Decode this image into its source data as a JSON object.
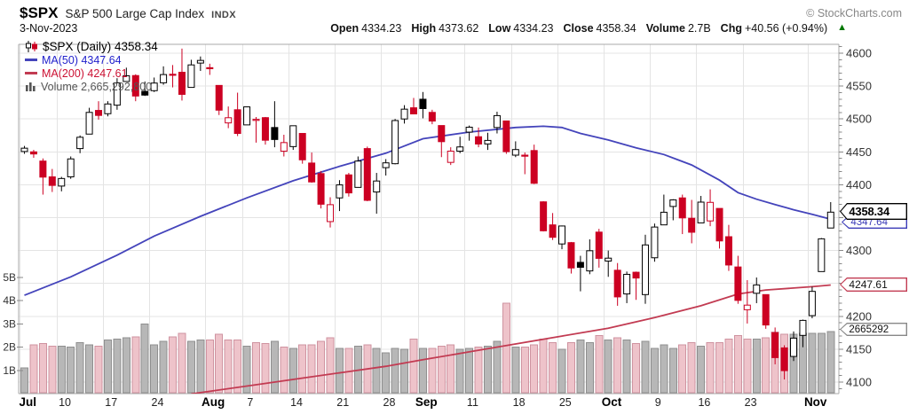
{
  "header": {
    "symbol": "$SPX",
    "name": "S&P 500 Large Cap Index",
    "exchange": "INDX",
    "copyright": "© StockCharts.com",
    "date": "3-Nov-2023",
    "quote": [
      {
        "label": "Open",
        "value": "4334.23"
      },
      {
        "label": "High",
        "value": "4373.62"
      },
      {
        "label": "Low",
        "value": "4334.23"
      },
      {
        "label": "Close",
        "value": "4358.34"
      },
      {
        "label": "Volume",
        "value": "2.7B"
      },
      {
        "label": "Chg",
        "value": "+40.56 (+0.94%)"
      }
    ],
    "quote_arrow": "▲"
  },
  "legend": {
    "main": "$SPX (Daily) 4358.34",
    "ma50": "MA(50) 4347.64",
    "ma200": "MA(200) 4247.61",
    "volume": "Volume 2,665,292,800"
  },
  "callouts": {
    "price": "4358.34",
    "ma50": "4347.64",
    "ma200": "4247.61",
    "volume": "2665292"
  },
  "chart_data": {
    "type": "candlestick",
    "title": "$SPX Daily with MA(50), MA(200) and volume",
    "y_axis": {
      "ticks": [
        4100,
        4150,
        4200,
        4250,
        4300,
        4350,
        4400,
        4450,
        4500,
        4550,
        4600
      ],
      "range": [
        4082,
        4613
      ]
    },
    "volume_axis": {
      "ticks": [
        {
          "label": "1B",
          "v": 1
        },
        {
          "label": "2B",
          "v": 2
        },
        {
          "label": "3B",
          "v": 3
        },
        {
          "label": "4B",
          "v": 4
        },
        {
          "label": "5B",
          "v": 5
        }
      ]
    },
    "x_axis": {
      "labels": [
        {
          "t": "Jul",
          "i": 0,
          "b": 1
        },
        {
          "t": "10",
          "i": 4
        },
        {
          "t": "17",
          "i": 9
        },
        {
          "t": "24",
          "i": 14
        },
        {
          "t": "Aug",
          "i": 20,
          "b": 1
        },
        {
          "t": "7",
          "i": 24
        },
        {
          "t": "14",
          "i": 29
        },
        {
          "t": "21",
          "i": 34
        },
        {
          "t": "28",
          "i": 39
        },
        {
          "t": "Sep",
          "i": 43,
          "b": 1
        },
        {
          "t": "11",
          "i": 48
        },
        {
          "t": "18",
          "i": 53
        },
        {
          "t": "25",
          "i": 58
        },
        {
          "t": "Oct",
          "i": 63,
          "b": 1
        },
        {
          "t": "9",
          "i": 68
        },
        {
          "t": "16",
          "i": 73
        },
        {
          "t": "23",
          "i": 78
        },
        {
          "t": "Nov",
          "i": 85,
          "b": 1
        }
      ]
    },
    "prev_close": 4450.38,
    "candles": [
      [
        "Jul 3",
        4450.5,
        4459,
        4447,
        4455.6,
        1.1
      ],
      [
        "Jul 5",
        4450,
        4453,
        4441,
        4446.8,
        2.1
      ],
      [
        "Jul 6",
        4436,
        4440,
        4385,
        4411.6,
        2.15
      ],
      [
        "Jul 7",
        4412,
        4424,
        4389,
        4399.0,
        2.05
      ],
      [
        "Jul 10",
        4398,
        4412,
        4390,
        4409.5,
        2.05
      ],
      [
        "Jul 11",
        4412,
        4443,
        4409,
        4439.3,
        2.0
      ],
      [
        "Jul 12",
        4455,
        4475,
        4448,
        4472.2,
        2.2
      ],
      [
        "Jul 13",
        4477,
        4517,
        4477,
        4510.0,
        2.1
      ],
      [
        "Jul 14",
        4513,
        4527,
        4499,
        4505.4,
        2.05
      ],
      [
        "Jul 17",
        4508,
        4527,
        4504,
        4522.8,
        2.3
      ],
      [
        "Jul 18",
        4521,
        4562,
        4514,
        4555.0,
        2.35
      ],
      [
        "Jul 19",
        4557,
        4578,
        4557,
        4565.7,
        2.4
      ],
      [
        "Jul 20",
        4566,
        4568,
        4527,
        4534.9,
        2.45
      ],
      [
        "Jul 21",
        4542,
        4557,
        4535,
        4536.3,
        3.0
      ],
      [
        "Jul 24",
        4543,
        4563,
        4541,
        4554.6,
        2.1
      ],
      [
        "Jul 25",
        4555,
        4580,
        4552,
        4567.5,
        2.25
      ],
      [
        "Jul 26",
        4568,
        4582,
        4548,
        4566.8,
        2.45
      ],
      [
        "Jul 27",
        4571,
        4607,
        4528,
        4537.4,
        2.6
      ],
      [
        "Jul 28",
        4548,
        4590,
        4548,
        4582.2,
        2.25
      ],
      [
        "Jul 31",
        4585,
        4595,
        4573,
        4589.0,
        2.3
      ],
      [
        "Aug 1",
        4578,
        4584,
        4567,
        4576.7,
        2.3
      ],
      [
        "Aug 2",
        4551,
        4551,
        4506,
        4513.4,
        2.55
      ],
      [
        "Aug 3",
        4494,
        4519,
        4486,
        4501.9,
        2.3
      ],
      [
        "Aug 4",
        4514,
        4540,
        4474,
        4478.0,
        2.3
      ],
      [
        "Aug 7",
        4491,
        4519,
        4491,
        4518.4,
        2.05
      ],
      [
        "Aug 8",
        4499,
        4503,
        4464,
        4499.4,
        2.2
      ],
      [
        "Aug 9",
        4502,
        4503,
        4461,
        4467.7,
        2.15
      ],
      [
        "Aug 10",
        4487,
        4527,
        4457,
        4468.8,
        2.25
      ],
      [
        "Aug 11",
        4451,
        4476,
        4443,
        4464.1,
        2.0
      ],
      [
        "Aug 14",
        4458,
        4490,
        4453,
        4489.7,
        1.95
      ],
      [
        "Aug 15",
        4478,
        4478,
        4432,
        4437.9,
        2.1
      ],
      [
        "Aug 16",
        4433,
        4449,
        4403,
        4404.3,
        2.1
      ],
      [
        "Aug 17",
        4417,
        4421,
        4364,
        4370.4,
        2.25
      ],
      [
        "Aug 18",
        4344,
        4381,
        4335,
        4369.7,
        2.4
      ],
      [
        "Aug 21",
        4380,
        4407,
        4360,
        4399.8,
        1.95
      ],
      [
        "Aug 22",
        4415,
        4418,
        4382,
        4387.6,
        1.95
      ],
      [
        "Aug 23",
        4396,
        4443,
        4396,
        4436.0,
        2.05
      ],
      [
        "Aug 24",
        4455,
        4458,
        4375,
        4376.3,
        2.1
      ],
      [
        "Aug 25",
        4389,
        4418,
        4356,
        4405.7,
        1.95
      ],
      [
        "Aug 28",
        4426,
        4439,
        4414,
        4433.3,
        1.75
      ],
      [
        "Aug 29",
        4432,
        4500,
        4431,
        4497.6,
        1.95
      ],
      [
        "Aug 30",
        4500,
        4521,
        4493,
        4514.9,
        1.9
      ],
      [
        "Aug 31",
        4517,
        4532,
        4507,
        4507.7,
        2.35
      ],
      [
        "Sep 1",
        4530,
        4541,
        4501,
        4515.8,
        1.95
      ],
      [
        "Sep 5",
        4510,
        4514,
        4492,
        4496.8,
        1.95
      ],
      [
        "Sep 6",
        4490,
        4490,
        4442,
        4465.5,
        2.05
      ],
      [
        "Sep 7",
        4434,
        4457,
        4430,
        4451.1,
        2.1
      ],
      [
        "Sep 8",
        4451,
        4473,
        4448,
        4457.5,
        1.9
      ],
      [
        "Sep 11",
        4480,
        4490,
        4467,
        4487.5,
        1.95
      ],
      [
        "Sep 12",
        4473,
        4487,
        4457,
        4461.9,
        2.0
      ],
      [
        "Sep 13",
        4462,
        4479,
        4453,
        4467.4,
        2.05
      ],
      [
        "Sep 14",
        4487,
        4511,
        4478,
        4505.1,
        2.25
      ],
      [
        "Sep 15",
        4497,
        4497,
        4447,
        4450.3,
        3.9
      ],
      [
        "Sep 18",
        4445,
        4466,
        4442,
        4453.5,
        2.0
      ],
      [
        "Sep 19",
        4445,
        4449,
        4416,
        4444.0,
        2.0
      ],
      [
        "Sep 20",
        4452,
        4461,
        4401,
        4402.2,
        2.1
      ],
      [
        "Sep 21",
        4374,
        4375,
        4329,
        4330.0,
        2.35
      ],
      [
        "Sep 22",
        4339,
        4357,
        4316,
        4320.1,
        2.2
      ],
      [
        "Sep 25",
        4310,
        4338,
        4302,
        4337.3,
        1.9
      ],
      [
        "Sep 26",
        4312,
        4313,
        4265,
        4273.5,
        2.2
      ],
      [
        "Sep 27",
        4282,
        4292,
        4238,
        4274.5,
        2.3
      ],
      [
        "Sep 28",
        4269,
        4317,
        4264,
        4299.7,
        2.2
      ],
      [
        "Sep 29",
        4328,
        4333,
        4274,
        4288.1,
        2.5
      ],
      [
        "Oct 2",
        4284,
        4300,
        4260,
        4288.4,
        2.3
      ],
      [
        "Oct 3",
        4270,
        4281,
        4216,
        4229.5,
        2.4
      ],
      [
        "Oct 4",
        4234,
        4268,
        4220,
        4263.8,
        2.3
      ],
      [
        "Oct 5",
        4267,
        4268,
        4225,
        4258.2,
        2.15
      ],
      [
        "Oct 6",
        4233,
        4324,
        4219,
        4308.5,
        2.25
      ],
      [
        "Oct 9",
        4289,
        4341,
        4283,
        4335.7,
        1.95
      ],
      [
        "Oct 10",
        4339,
        4385,
        4339,
        4358.2,
        2.1
      ],
      [
        "Oct 11",
        4367,
        4378,
        4346,
        4377.0,
        1.95
      ],
      [
        "Oct 12",
        4380,
        4385,
        4325,
        4349.6,
        2.1
      ],
      [
        "Oct 13",
        4349,
        4377,
        4311,
        4327.8,
        2.2
      ],
      [
        "Oct 16",
        4342,
        4383,
        4342,
        4373.6,
        2.05
      ],
      [
        "Oct 17",
        4345,
        4393,
        4337,
        4373.2,
        2.2
      ],
      [
        "Oct 18",
        4364,
        4364,
        4303,
        4314.6,
        2.2
      ],
      [
        "Oct 19",
        4321,
        4339,
        4269,
        4278.0,
        2.35
      ],
      [
        "Oct 20",
        4275,
        4292,
        4219,
        4224.2,
        2.5
      ],
      [
        "Oct 23",
        4210,
        4255,
        4189,
        4217.0,
        2.35
      ],
      [
        "Oct 24",
        4235,
        4259,
        4220,
        4247.7,
        2.35
      ],
      [
        "Oct 25",
        4233,
        4233,
        4181,
        4186.8,
        2.4
      ],
      [
        "Oct 26",
        4175,
        4183,
        4127,
        4137.2,
        2.65
      ],
      [
        "Oct 27",
        4152,
        4156,
        4104,
        4117.4,
        2.55
      ],
      [
        "Oct 30",
        4139,
        4177,
        4132,
        4166.8,
        2.55
      ],
      [
        "Oct 31",
        4171,
        4195,
        4153,
        4193.8,
        2.6
      ],
      [
        "Nov 1",
        4201,
        4245,
        4197,
        4237.9,
        2.6
      ],
      [
        "Nov 2",
        4268,
        4319,
        4268,
        4317.8,
        2.6
      ],
      [
        "Nov 3",
        4334.23,
        4373.62,
        4334.23,
        4358.34,
        2.665
      ]
    ],
    "ma50": [
      [
        0,
        4232
      ],
      [
        5,
        4260
      ],
      [
        10,
        4293
      ],
      [
        14,
        4322
      ],
      [
        19,
        4352
      ],
      [
        24,
        4380
      ],
      [
        29,
        4406
      ],
      [
        34,
        4428
      ],
      [
        39,
        4448
      ],
      [
        43,
        4470
      ],
      [
        48,
        4480
      ],
      [
        53,
        4487
      ],
      [
        56,
        4489
      ],
      [
        58,
        4487
      ],
      [
        60,
        4478
      ],
      [
        63,
        4468
      ],
      [
        66,
        4456
      ],
      [
        69,
        4446
      ],
      [
        72,
        4430
      ],
      [
        75,
        4407
      ],
      [
        77,
        4388
      ],
      [
        79,
        4378
      ],
      [
        81,
        4370
      ],
      [
        83,
        4362
      ],
      [
        85,
        4355
      ],
      [
        87,
        4347.64
      ]
    ],
    "ma200": [
      [
        18,
        4082
      ],
      [
        20,
        4086
      ],
      [
        25,
        4096
      ],
      [
        30,
        4106
      ],
      [
        35,
        4116
      ],
      [
        39,
        4124
      ],
      [
        43,
        4134
      ],
      [
        48,
        4146
      ],
      [
        53,
        4158
      ],
      [
        58,
        4170
      ],
      [
        63,
        4182
      ],
      [
        68,
        4198
      ],
      [
        73,
        4216
      ],
      [
        77,
        4234
      ],
      [
        80,
        4240
      ],
      [
        83,
        4243
      ],
      [
        85,
        4245
      ],
      [
        87,
        4247.61
      ]
    ],
    "colors": {
      "up": "#000000",
      "down": "#cc0022",
      "ma50": "#4444bb",
      "ma200": "#c23b52",
      "vol_up": "#b7b7b7",
      "vol_up_border": "#8f8f8f",
      "vol_down": "#eec3ca",
      "vol_down_border": "#cf93a0",
      "grid": "#e4e4e4",
      "axis": "#a8a8a8",
      "tick": "#888888",
      "label": "#333333"
    }
  }
}
